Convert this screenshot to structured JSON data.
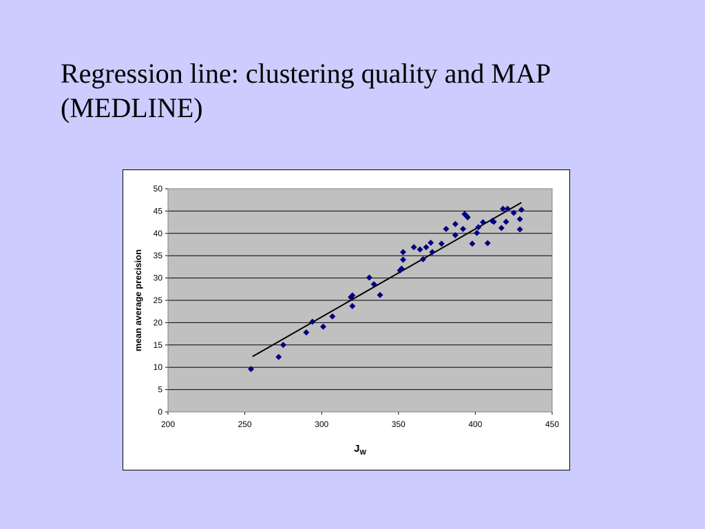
{
  "slide": {
    "title_line1": "Regression line:  clustering quality and MAP",
    "title_line2": "(MEDLINE)"
  },
  "colors": {
    "background": "#ccccff",
    "plot_area": "#c0c0c0",
    "marker": "#000080",
    "regression_line": "#000000"
  },
  "chart_data": {
    "type": "scatter",
    "xlabel": "J",
    "xlabel_subscript": "W",
    "ylabel": "mean average precision",
    "xlim": [
      200,
      450
    ],
    "ylim": [
      0,
      50
    ],
    "x_ticks": [
      "200",
      "250",
      "300",
      "350",
      "400",
      "450"
    ],
    "y_ticks": [
      "0",
      "5",
      "10",
      "15",
      "20",
      "25",
      "30",
      "35",
      "40",
      "45",
      "50"
    ],
    "grid": "horizontal",
    "legend": "none",
    "marker": "diamond",
    "points": [
      [
        254,
        9.6
      ],
      [
        272,
        12.3
      ],
      [
        275,
        15.0
      ],
      [
        290,
        17.8
      ],
      [
        294,
        20.2
      ],
      [
        301,
        19.1
      ],
      [
        307,
        21.4
      ],
      [
        319,
        25.7
      ],
      [
        320,
        26.1
      ],
      [
        320,
        23.7
      ],
      [
        331,
        30.1
      ],
      [
        334,
        28.6
      ],
      [
        338,
        26.2
      ],
      [
        351,
        31.7
      ],
      [
        352,
        32.1
      ],
      [
        353,
        35.8
      ],
      [
        353,
        34.1
      ],
      [
        360,
        36.9
      ],
      [
        364,
        36.4
      ],
      [
        366,
        34.2
      ],
      [
        368,
        36.9
      ],
      [
        371,
        37.9
      ],
      [
        372,
        35.8
      ],
      [
        378,
        37.7
      ],
      [
        381,
        41.0
      ],
      [
        387,
        39.6
      ],
      [
        387,
        42.1
      ],
      [
        392,
        41.0
      ],
      [
        393,
        44.3
      ],
      [
        394,
        44.0
      ],
      [
        395,
        43.6
      ],
      [
        398,
        37.7
      ],
      [
        401,
        40.1
      ],
      [
        402,
        41.4
      ],
      [
        405,
        42.5
      ],
      [
        408,
        37.8
      ],
      [
        411,
        42.8
      ],
      [
        412,
        42.6
      ],
      [
        417,
        41.2
      ],
      [
        418,
        45.5
      ],
      [
        420,
        42.6
      ],
      [
        421,
        45.5
      ],
      [
        425,
        44.6
      ],
      [
        429,
        43.2
      ],
      [
        429,
        40.9
      ],
      [
        430,
        45.3
      ]
    ],
    "regression_line": {
      "x": [
        255,
        430
      ],
      "y": [
        12.4,
        46.9
      ]
    }
  }
}
